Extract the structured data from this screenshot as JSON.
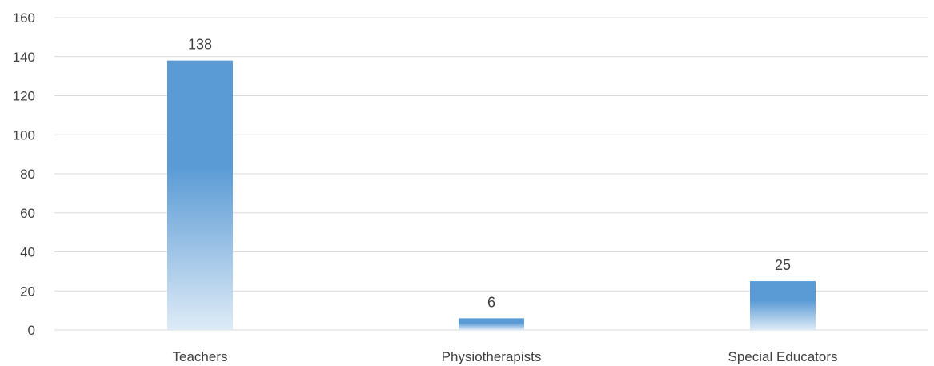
{
  "chart_data": {
    "type": "bar",
    "categories": [
      "Teachers",
      "Physiotherapists",
      "Special Educators"
    ],
    "values": [
      138,
      6,
      25
    ],
    "data_labels": [
      "138",
      "6",
      "25"
    ],
    "ylim": [
      0,
      160
    ],
    "yticks": [
      0,
      20,
      40,
      60,
      80,
      100,
      120,
      140,
      160
    ],
    "ytick_labels": [
      "0",
      "20",
      "40",
      "60",
      "80",
      "100",
      "120",
      "140",
      "160"
    ],
    "grid": true,
    "legend": "none",
    "colors": {
      "bar_top": "#5b9bd5",
      "bar_bottom": "#deebf7",
      "grid": "#d9d9d9",
      "axis": "#d9d9d9",
      "text": "#404040"
    }
  }
}
